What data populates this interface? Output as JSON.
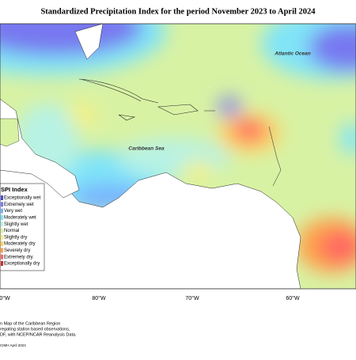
{
  "title": "Standardized Precipitation Index for the period November 2023 to April 2024",
  "map_labels": {
    "ocean": "Atlantic Ocean",
    "sea": "Caribbean Sea"
  },
  "legend": {
    "title": "SPI Index",
    "items": [
      {
        "label": "Exceptionally wet",
        "color": "#4b4bc8"
      },
      {
        "label": "Extremely wet",
        "color": "#7878f0"
      },
      {
        "label": "Very wet",
        "color": "#78b4ff"
      },
      {
        "label": "Moderately wet",
        "color": "#80e4f8"
      },
      {
        "label": "Slightly wet",
        "color": "#b8f2e4"
      },
      {
        "label": "Normal",
        "color": "#d8f2a4"
      },
      {
        "label": "Slightly dry",
        "color": "#f4f084"
      },
      {
        "label": "Moderately dry",
        "color": "#ffd262"
      },
      {
        "label": "Severely dry",
        "color": "#ffa048"
      },
      {
        "label": "Extremely dry",
        "color": "#ff6464"
      },
      {
        "label": "Exceptionally dry",
        "color": "#c83232"
      }
    ]
  },
  "longitude_labels": [
    "0°W",
    "80°W",
    "70°W",
    "60°W"
  ],
  "footer": [
    "n Map of the Caribbean Region",
    "regating station based observations,",
    "DF, with NCEP/NCAR Reanalysis Data.",
    "CIMH April 2024"
  ]
}
